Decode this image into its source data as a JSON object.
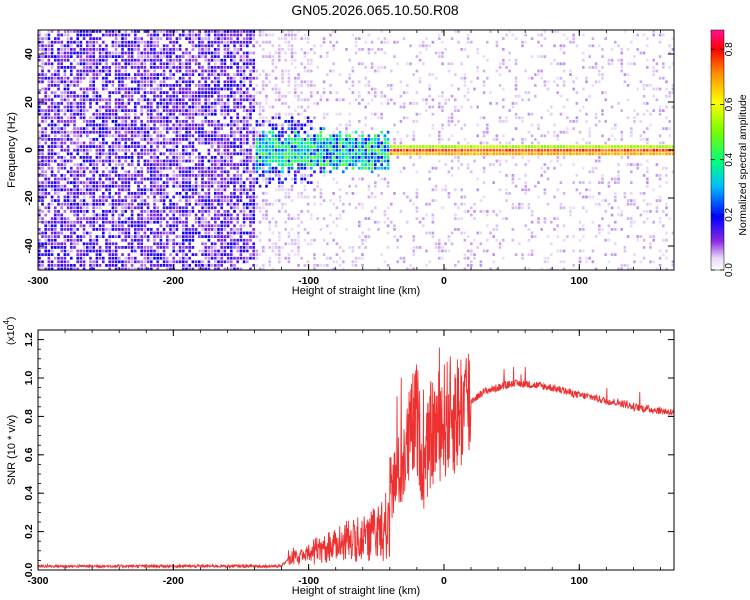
{
  "title": "GN05.2026.065.10.50.R08",
  "chart_data": [
    {
      "type": "heatmap",
      "xlabel": "Height of straight line (km)",
      "ylabel": "Frequency (Hz)",
      "xlim": [
        -300,
        170
      ],
      "ylim": [
        -50,
        50
      ],
      "xticks": [
        "-300",
        "-200",
        "-100",
        "0",
        "100"
      ],
      "yticks": [
        "-40",
        "-20",
        "0",
        "20",
        "40"
      ],
      "colorbar": {
        "label": "Normalized spectral amplitude",
        "range": [
          0.0,
          0.87
        ],
        "ticks": [
          "0.0",
          "0.2",
          "0.4",
          "0.6",
          "0.8"
        ]
      },
      "features": [
        {
          "name": "",
          "x": [
            -300,
            -140
          ],
          "description": "dense noise"
        },
        {
          "x": [
            -140,
            -40
          ],
          "freq_center": 0,
          "description": "turbulent band"
        },
        {
          "x": [
            -40,
            170
          ],
          "freq_center": 0,
          "description": "narrow band"
        }
      ]
    },
    {
      "type": "line",
      "xlabel": "Height of straight line (km)",
      "ylabel": "SNR (10 * v/v)",
      "yscale_label": "(x10",
      "yscale_exp": "4",
      "xlim": [
        -300,
        170
      ],
      "ylim": [
        0.0,
        1.25
      ],
      "xticks": [
        "-300",
        "-200",
        "-100",
        "0",
        "100"
      ],
      "yticks": [
        "0.0",
        "0.2",
        "0.4",
        "0.6",
        "0.8",
        "1.0",
        "1.2"
      ],
      "series": [
        {
          "color": "#ee3030",
          "x": [
            -300,
            -200,
            -120,
            -115,
            -100,
            -80,
            -60,
            -50,
            -40,
            -30,
            -25,
            -20,
            -15,
            -10,
            0,
            10,
            20,
            30,
            40,
            50,
            60,
            70,
            80,
            90,
            100,
            110,
            120,
            130,
            140,
            150,
            160,
            170
          ],
          "y": [
            0.02,
            0.02,
            0.02,
            0.06,
            0.12,
            0.18,
            0.28,
            0.32,
            0.42,
            0.55,
            0.7,
            0.8,
            0.5,
            0.7,
            0.78,
            0.82,
            0.88,
            0.93,
            0.95,
            0.97,
            0.97,
            0.96,
            0.95,
            0.93,
            0.91,
            0.9,
            0.88,
            0.87,
            0.85,
            0.84,
            0.83,
            0.82
          ]
        }
      ]
    }
  ]
}
